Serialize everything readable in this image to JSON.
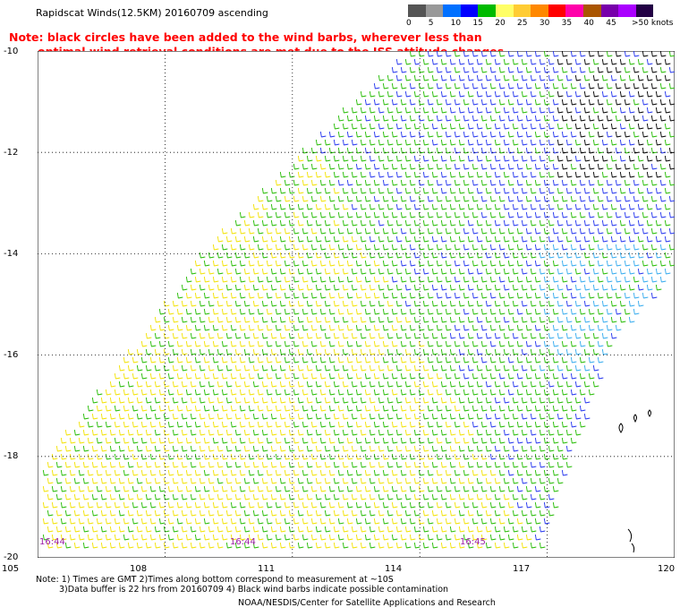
{
  "title": "Rapidscat Winds(12.5KM) 20160709 ascending",
  "note_line1": "Note: black circles have been added to the wind barbs, wherever less than",
  "note_line2": "optimal wind retrieval conditions are met due to the ISS attitude changes.",
  "legend": {
    "unit": ">50 knots",
    "labels": [
      "0",
      "5",
      "10",
      "15",
      "20",
      "25",
      "30",
      "35",
      "40",
      "45"
    ],
    "colors": [
      "#555555",
      "#999999",
      "#0070ff",
      "#0000ff",
      "#00bb00",
      "#ffff66",
      "#ffcc33",
      "#ff8800",
      "#ff0000",
      "#ff00aa",
      "#aa5500",
      "#7700aa",
      "#aa00ff",
      "#220044"
    ]
  },
  "lat_labels": [
    "-10",
    "-12",
    "-14",
    "-16",
    "-18",
    "-20"
  ],
  "lon_labels": [
    "105",
    "108",
    "111",
    "114",
    "117",
    "120"
  ],
  "time_labels": [
    "16:44",
    "16:44",
    "16:45"
  ],
  "footnote1": "Note: 1) Times are GMT 2)Times along bottom correspond to measurement at ~10S",
  "footnote2": "3)Data buffer is 22 hrs from 20160709 4) Black wind barbs indicate possible contamination",
  "credit": "NOAA/NESDIS/Center for Satellite Applications and Research",
  "map": {
    "lon_range": [
      105,
      120
    ],
    "lat_range": [
      -20,
      -10
    ],
    "barb_colors": {
      "yellow": "#f2e200",
      "green": "#22bb00",
      "blue": "#2233ee",
      "cyan": "#33aaee",
      "black": "#000000"
    }
  }
}
